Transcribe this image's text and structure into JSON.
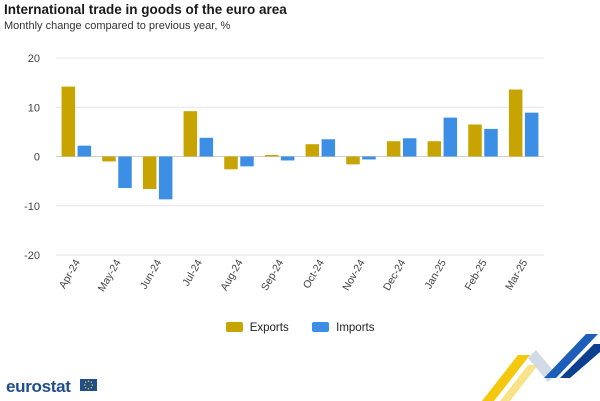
{
  "header": {
    "title": "International trade in goods of the euro area",
    "subtitle": "Monthly change compared to previous year, %"
  },
  "brand": {
    "logo_text": "eurostat"
  },
  "chart_data": {
    "type": "bar",
    "categories": [
      "Apr-24",
      "May-24",
      "Jun-24",
      "Jul-24",
      "Aug-24",
      "Sep-24",
      "Oct-24",
      "Nov-24",
      "Dec-24",
      "Jan-25",
      "Feb-25",
      "Mar-25"
    ],
    "series": [
      {
        "name": "Exports",
        "color": "#c8a400",
        "values": [
          14.2,
          -1.0,
          -6.6,
          9.2,
          -2.6,
          0.3,
          2.5,
          -1.6,
          3.1,
          3.1,
          6.5,
          13.6
        ]
      },
      {
        "name": "Imports",
        "color": "#3d8fe6",
        "values": [
          2.2,
          -6.4,
          -8.7,
          3.8,
          -2.0,
          -0.8,
          3.5,
          -0.6,
          3.7,
          7.9,
          5.6,
          8.9
        ]
      }
    ],
    "yticks": [
      20,
      10,
      0,
      -10,
      -20
    ],
    "ylim": [
      -20,
      20
    ],
    "grid": true,
    "legend": "bottom-center"
  }
}
